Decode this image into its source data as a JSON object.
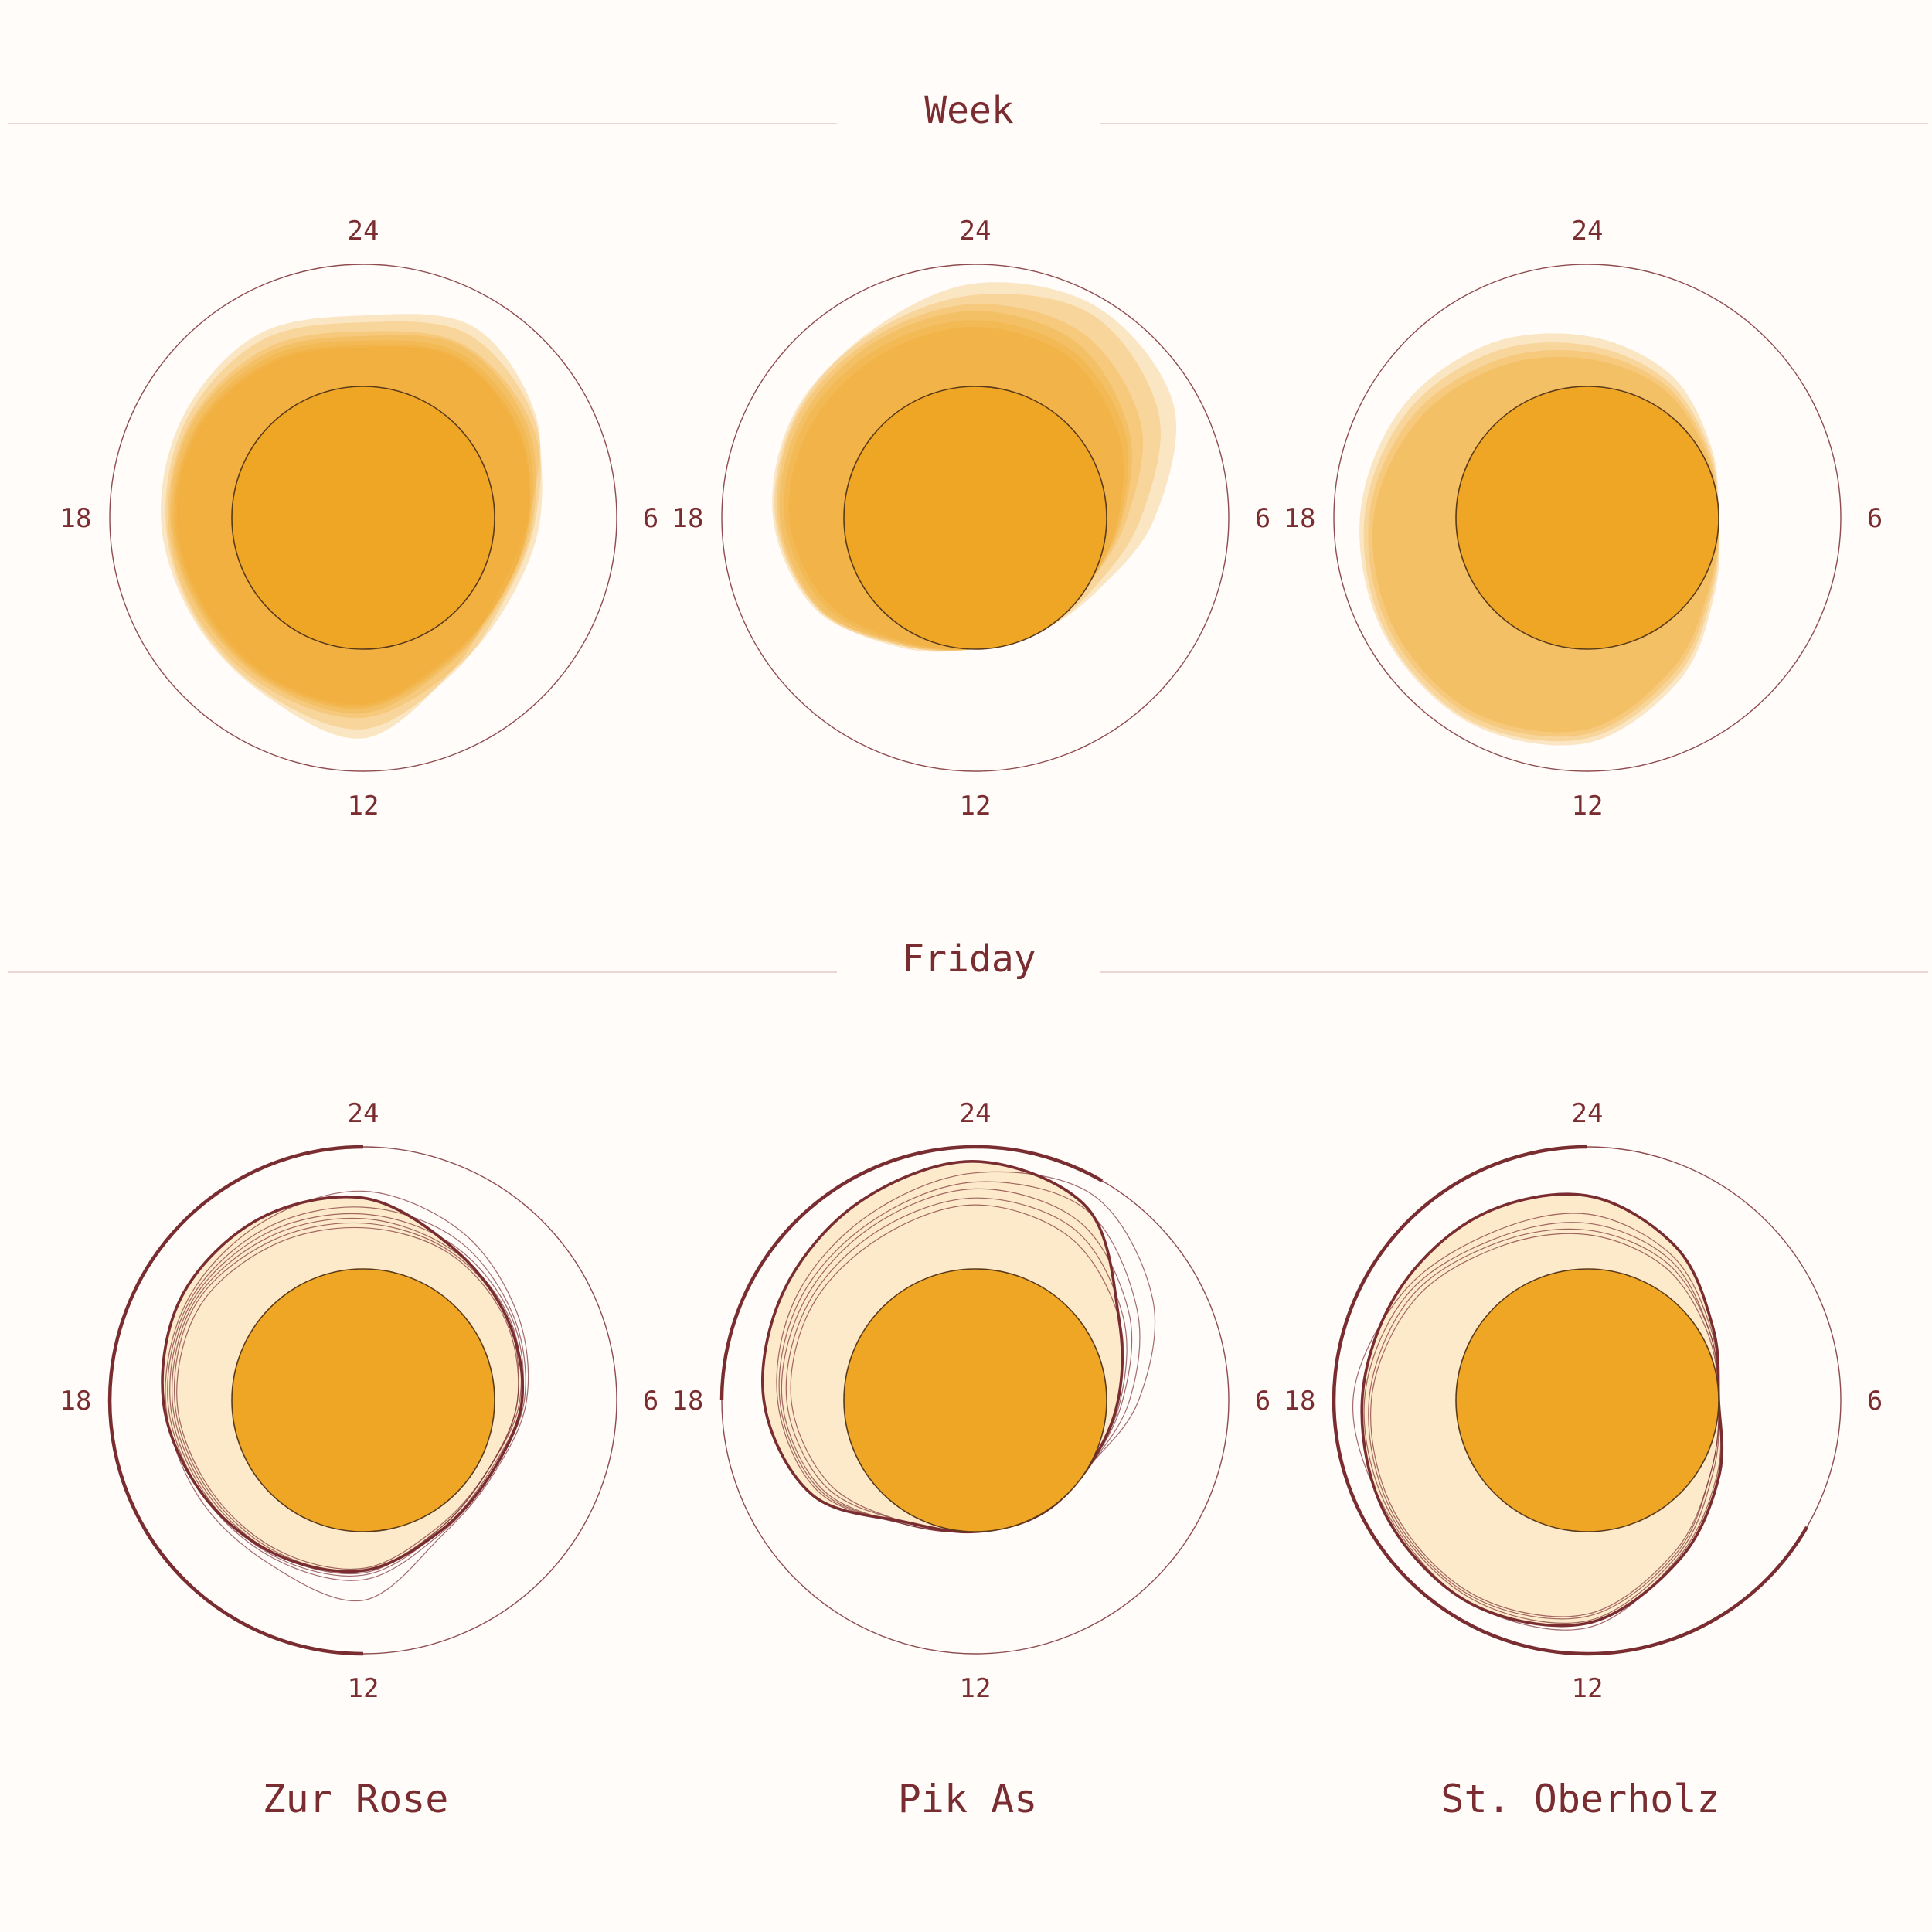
{
  "sections": [
    {
      "title": "Week"
    },
    {
      "title": "Friday"
    }
  ],
  "places": [
    "Zur Rose",
    "Pik As",
    "St. Oberholz"
  ],
  "hour_labels": [
    "24",
    "6",
    "12",
    "18"
  ],
  "colors": {
    "background": "#fffcfa",
    "accent": "#7a2d30",
    "fill": "#efa625",
    "fill_light": "#fbe6c2",
    "divider": "#ecd6d4"
  },
  "chart_data": [
    {
      "type": "radial-area",
      "section": "Week",
      "place": "Zur Rose",
      "hours": [
        0,
        2,
        4,
        6,
        8,
        10,
        12,
        14,
        16,
        18,
        20,
        22
      ],
      "series": [
        {
          "values": [
            62,
            78,
            60,
            30,
            20,
            40,
            78,
            62,
            58,
            62,
            66,
            70
          ]
        },
        {
          "values": [
            56,
            70,
            58,
            36,
            28,
            42,
            70,
            60,
            56,
            58,
            62,
            64
          ]
        },
        {
          "values": [
            48,
            60,
            54,
            40,
            32,
            40,
            60,
            56,
            54,
            56,
            58,
            56
          ]
        },
        {
          "values": [
            44,
            58,
            50,
            34,
            26,
            34,
            56,
            52,
            50,
            54,
            56,
            52
          ]
        },
        {
          "values": [
            40,
            52,
            46,
            32,
            24,
            32,
            52,
            50,
            48,
            52,
            52,
            48
          ]
        },
        {
          "values": [
            36,
            48,
            42,
            30,
            24,
            30,
            50,
            48,
            46,
            50,
            50,
            44
          ]
        },
        {
          "values": [
            34,
            46,
            40,
            30,
            24,
            28,
            48,
            46,
            44,
            48,
            48,
            42
          ]
        }
      ]
    },
    {
      "type": "radial-area",
      "section": "Week",
      "place": "Pik As",
      "hours": [
        0,
        2,
        4,
        6,
        8,
        10,
        12,
        14,
        16,
        18,
        20,
        22
      ],
      "series": [
        {
          "values": [
            90,
            98,
            85,
            42,
            10,
            0,
            0,
            12,
            44,
            60,
            66,
            72
          ]
        },
        {
          "values": [
            80,
            90,
            70,
            30,
            6,
            0,
            0,
            14,
            46,
            62,
            68,
            70
          ]
        },
        {
          "values": [
            72,
            72,
            52,
            18,
            0,
            0,
            0,
            16,
            44,
            58,
            64,
            66
          ]
        },
        {
          "values": [
            66,
            62,
            40,
            14,
            0,
            0,
            0,
            14,
            42,
            56,
            60,
            62
          ]
        },
        {
          "values": [
            58,
            54,
            36,
            12,
            0,
            0,
            0,
            12,
            38,
            52,
            56,
            56
          ]
        },
        {
          "values": [
            52,
            48,
            30,
            10,
            0,
            0,
            0,
            10,
            34,
            48,
            50,
            50
          ]
        }
      ]
    },
    {
      "type": "radial-area",
      "section": "Week",
      "place": "St. Oberholz",
      "hours": [
        0,
        2,
        4,
        6,
        8,
        10,
        12,
        14,
        16,
        18,
        20,
        22
      ],
      "series": [
        {
          "values": [
            44,
            30,
            10,
            0,
            14,
            48,
            82,
            92,
            90,
            84,
            74,
            60
          ]
        },
        {
          "values": [
            36,
            24,
            8,
            0,
            12,
            44,
            78,
            90,
            88,
            80,
            68,
            52
          ]
        },
        {
          "values": [
            30,
            20,
            6,
            0,
            10,
            40,
            74,
            86,
            84,
            76,
            62,
            44
          ]
        },
        {
          "values": [
            24,
            16,
            4,
            0,
            8,
            36,
            70,
            82,
            80,
            72,
            56,
            38
          ]
        }
      ]
    },
    {
      "type": "radial-area",
      "section": "Friday",
      "place": "Zur Rose",
      "hours": [
        0,
        2,
        4,
        6,
        8,
        10,
        12,
        14,
        16,
        18,
        20,
        22
      ],
      "series": [
        {
          "values": [
            62,
            40,
            30,
            24,
            14,
            18,
            34,
            40,
            48,
            60,
            68,
            68
          ],
          "highlight": true
        },
        {
          "values": [
            68,
            56,
            40,
            28,
            16,
            22,
            60,
            50,
            52,
            58,
            62,
            64
          ]
        },
        {
          "values": [
            54,
            48,
            36,
            26,
            14,
            20,
            42,
            44,
            48,
            56,
            60,
            58
          ]
        },
        {
          "values": [
            48,
            42,
            34,
            24,
            12,
            18,
            38,
            42,
            46,
            54,
            58,
            54
          ]
        },
        {
          "values": [
            44,
            38,
            32,
            22,
            10,
            16,
            36,
            40,
            44,
            52,
            56,
            50
          ]
        },
        {
          "values": [
            40,
            36,
            30,
            20,
            10,
            16,
            34,
            38,
            42,
            50,
            54,
            46
          ]
        },
        {
          "values": [
            36,
            34,
            28,
            20,
            10,
            14,
            32,
            36,
            40,
            48,
            50,
            42
          ]
        }
      ],
      "arcs": [
        [
          15,
          24
        ],
        [
          12,
          16
        ]
      ]
    },
    {
      "type": "radial-area",
      "section": "Friday",
      "place": "Pik As",
      "hours": [
        0,
        2,
        4,
        6,
        8,
        10,
        12,
        14,
        16,
        18,
        20,
        22
      ],
      "series": [
        {
          "values": [
            94,
            80,
            30,
            10,
            0,
            0,
            0,
            8,
            50,
            70,
            78,
            86
          ],
          "highlight": true
        },
        {
          "values": [
            84,
            92,
            64,
            28,
            0,
            0,
            0,
            10,
            44,
            58,
            66,
            72
          ]
        },
        {
          "values": [
            76,
            78,
            48,
            20,
            0,
            0,
            0,
            10,
            42,
            56,
            62,
            66
          ]
        },
        {
          "values": [
            70,
            66,
            40,
            14,
            0,
            0,
            0,
            10,
            40,
            54,
            58,
            62
          ]
        },
        {
          "values": [
            62,
            58,
            34,
            12,
            0,
            0,
            0,
            8,
            36,
            50,
            54,
            56
          ]
        },
        {
          "values": [
            56,
            50,
            30,
            10,
            0,
            0,
            0,
            8,
            32,
            46,
            50,
            50
          ]
        }
      ],
      "arcs": [
        [
          18,
          26
        ]
      ]
    },
    {
      "type": "radial-area",
      "section": "Friday",
      "place": "St. Oberholz",
      "hours": [
        0,
        2,
        4,
        6,
        8,
        10,
        12,
        14,
        16,
        18,
        20,
        22
      ],
      "series": [
        {
          "values": [
            64,
            40,
            12,
            0,
            18,
            46,
            80,
            90,
            88,
            82,
            76,
            72
          ],
          "highlight": true
        },
        {
          "values": [
            48,
            32,
            10,
            0,
            16,
            44,
            84,
            90,
            86,
            90,
            72,
            54
          ]
        },
        {
          "values": [
            40,
            28,
            8,
            0,
            12,
            42,
            78,
            86,
            84,
            80,
            68,
            48
          ]
        },
        {
          "values": [
            34,
            24,
            8,
            0,
            10,
            40,
            74,
            84,
            82,
            76,
            64,
            44
          ]
        },
        {
          "values": [
            30,
            20,
            6,
            0,
            10,
            38,
            72,
            82,
            80,
            74,
            60,
            40
          ]
        }
      ],
      "arcs": [
        [
          8,
          24
        ]
      ]
    }
  ]
}
